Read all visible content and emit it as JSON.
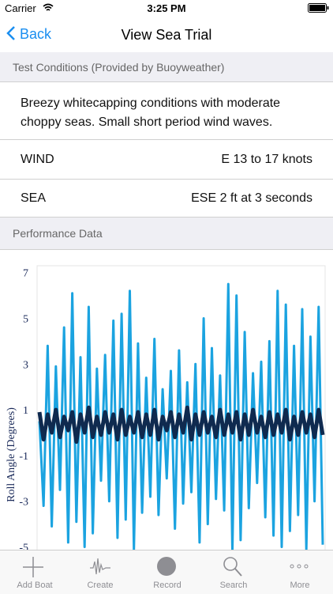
{
  "status_bar": {
    "carrier": "Carrier",
    "time": "3:25 PM"
  },
  "nav": {
    "back": "Back",
    "title": "View Sea Trial"
  },
  "conditions_header": "Test Conditions (Provided by Buoyweather)",
  "description": "Breezy whitecapping conditions with moderate choppy seas. Small short period wind waves.",
  "rows": [
    {
      "label": "WIND",
      "value": "E 13 to 17 knots"
    },
    {
      "label": "SEA",
      "value": "ESE 2 ft at 3 seconds"
    }
  ],
  "performance_header": "Performance Data",
  "chart_data": {
    "type": "line",
    "ylabel": "Roll Angle (Degrees)",
    "ylim": [
      -5.5,
      7.3
    ],
    "yticks": [
      7,
      5,
      3,
      1,
      -1,
      -3,
      -5
    ],
    "series": [
      {
        "color": "#1ba3e0",
        "values": [
          0.5,
          -3.2,
          3.8,
          -4.1,
          2.9,
          -2.5,
          4.6,
          -4.8,
          6.1,
          -3.9,
          3.3,
          -5.0,
          5.5,
          -4.4,
          2.8,
          -2.1,
          3.4,
          -3.0,
          4.9,
          -4.6,
          5.2,
          -3.8,
          6.2,
          -5.1,
          3.9,
          -3.5,
          2.4,
          -2.8,
          4.1,
          -3.6,
          1.9,
          -2.0,
          2.7,
          -4.2,
          3.6,
          -3.1,
          2.2,
          -2.6,
          3.0,
          -4.8,
          5.0,
          -4.0,
          3.7,
          -2.9,
          2.5,
          -3.4,
          6.5,
          -5.2,
          6.0,
          -4.7,
          4.4,
          -3.3,
          2.6,
          -2.2,
          3.1,
          -3.7,
          4.0,
          -4.5,
          6.2,
          -5.0,
          5.6,
          -4.3,
          3.8,
          -3.6,
          5.4,
          -5.1,
          4.2,
          -3.0,
          5.5,
          -4.9
        ]
      },
      {
        "color": "#0f2a4f",
        "values": [
          0.9,
          -0.3,
          0.8,
          0.0,
          1.0,
          -0.2,
          0.7,
          0.1,
          0.9,
          -0.4,
          0.8,
          0.0,
          1.1,
          -0.2,
          0.7,
          -0.1,
          0.9,
          0.0,
          0.8,
          -0.3,
          1.0,
          -0.1,
          0.7,
          0.0,
          0.9,
          -0.2,
          0.8,
          -0.1,
          1.0,
          -0.3,
          0.7,
          0.1,
          0.9,
          -0.2,
          0.8,
          0.0,
          1.1,
          -0.3,
          0.8,
          -0.1,
          0.9,
          0.0,
          0.7,
          -0.2,
          1.0,
          -0.1,
          0.8,
          0.0,
          0.9,
          -0.3,
          0.8,
          -0.1,
          1.0,
          0.0,
          0.7,
          -0.2,
          0.9,
          -0.1,
          0.8,
          0.0,
          1.0,
          -0.3,
          0.7,
          -0.1,
          0.9,
          0.0,
          0.8,
          -0.2,
          1.0,
          -0.1
        ]
      }
    ]
  },
  "tabs": [
    "Add Boat",
    "Create",
    "Record",
    "Search",
    "More"
  ]
}
